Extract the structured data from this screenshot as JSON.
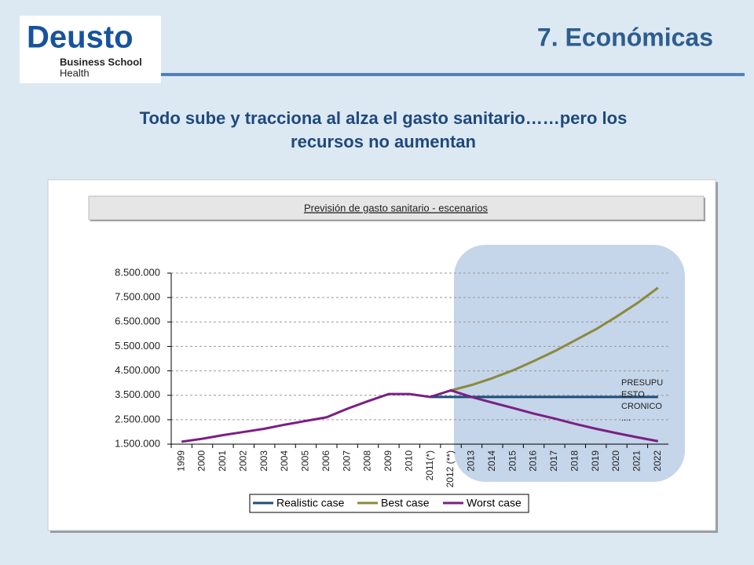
{
  "slide": {
    "heading": "7. Económicas",
    "subtitle_lines": [
      "Todo sube y tracciona al alza el gasto sanitario……pero los",
      "recursos no aumentan"
    ],
    "logo": {
      "word": "Deusto",
      "line1": "Business School",
      "line2": "Health"
    }
  },
  "chart_data": {
    "type": "line",
    "title": "Previsión de gasto sanitario - escenarios",
    "categories": [
      "1999",
      "2000",
      "2001",
      "2002",
      "2003",
      "2004",
      "2005",
      "2006",
      "2007",
      "2008",
      "2009",
      "2010",
      "2011(*)",
      "2012 (**)",
      "2013",
      "2014",
      "2015",
      "2016",
      "2017",
      "2018",
      "2019",
      "2020",
      "2021",
      "2022"
    ],
    "series": [
      {
        "name": "Realistic case",
        "color": "#1f4e79",
        "values": [
          null,
          null,
          null,
          null,
          null,
          null,
          null,
          null,
          null,
          null,
          null,
          null,
          3430000,
          3430000,
          3430000,
          3430000,
          3430000,
          3430000,
          3430000,
          3430000,
          3430000,
          3430000,
          3430000,
          3430000
        ]
      },
      {
        "name": "Best case",
        "color": "#8a8a3c",
        "values": [
          null,
          null,
          null,
          null,
          null,
          null,
          null,
          null,
          null,
          null,
          null,
          null,
          null,
          3700000,
          3920000,
          4200000,
          4520000,
          4900000,
          5300000,
          5750000,
          6200000,
          6720000,
          7270000,
          7900000
        ]
      },
      {
        "name": "Worst case",
        "color": "#7b1f82",
        "values": [
          1600000,
          1720000,
          1870000,
          2000000,
          2130000,
          2300000,
          2450000,
          2600000,
          2950000,
          3260000,
          3550000,
          3550000,
          3430000,
          3700000,
          3430000,
          3200000,
          2980000,
          2750000,
          2550000,
          2330000,
          2130000,
          1950000,
          1780000,
          1620000
        ]
      }
    ],
    "ylim": [
      1500000,
      8500000
    ],
    "yticks": [
      {
        "value": 1500000,
        "label": "1.500.000"
      },
      {
        "value": 2500000,
        "label": "2.500.000"
      },
      {
        "value": 3500000,
        "label": "3.500.000"
      },
      {
        "value": 4500000,
        "label": "4.500.000"
      },
      {
        "value": 5500000,
        "label": "5.500.000"
      },
      {
        "value": 6500000,
        "label": "6.500.000"
      },
      {
        "value": 7500000,
        "label": "7.500.000"
      },
      {
        "value": 8500000,
        "label": "8.500.000"
      }
    ],
    "grid": true,
    "legend": "bottom",
    "annotation_lines": [
      "PRESUPU",
      "ESTO",
      "CRONICO",
      "...."
    ]
  }
}
